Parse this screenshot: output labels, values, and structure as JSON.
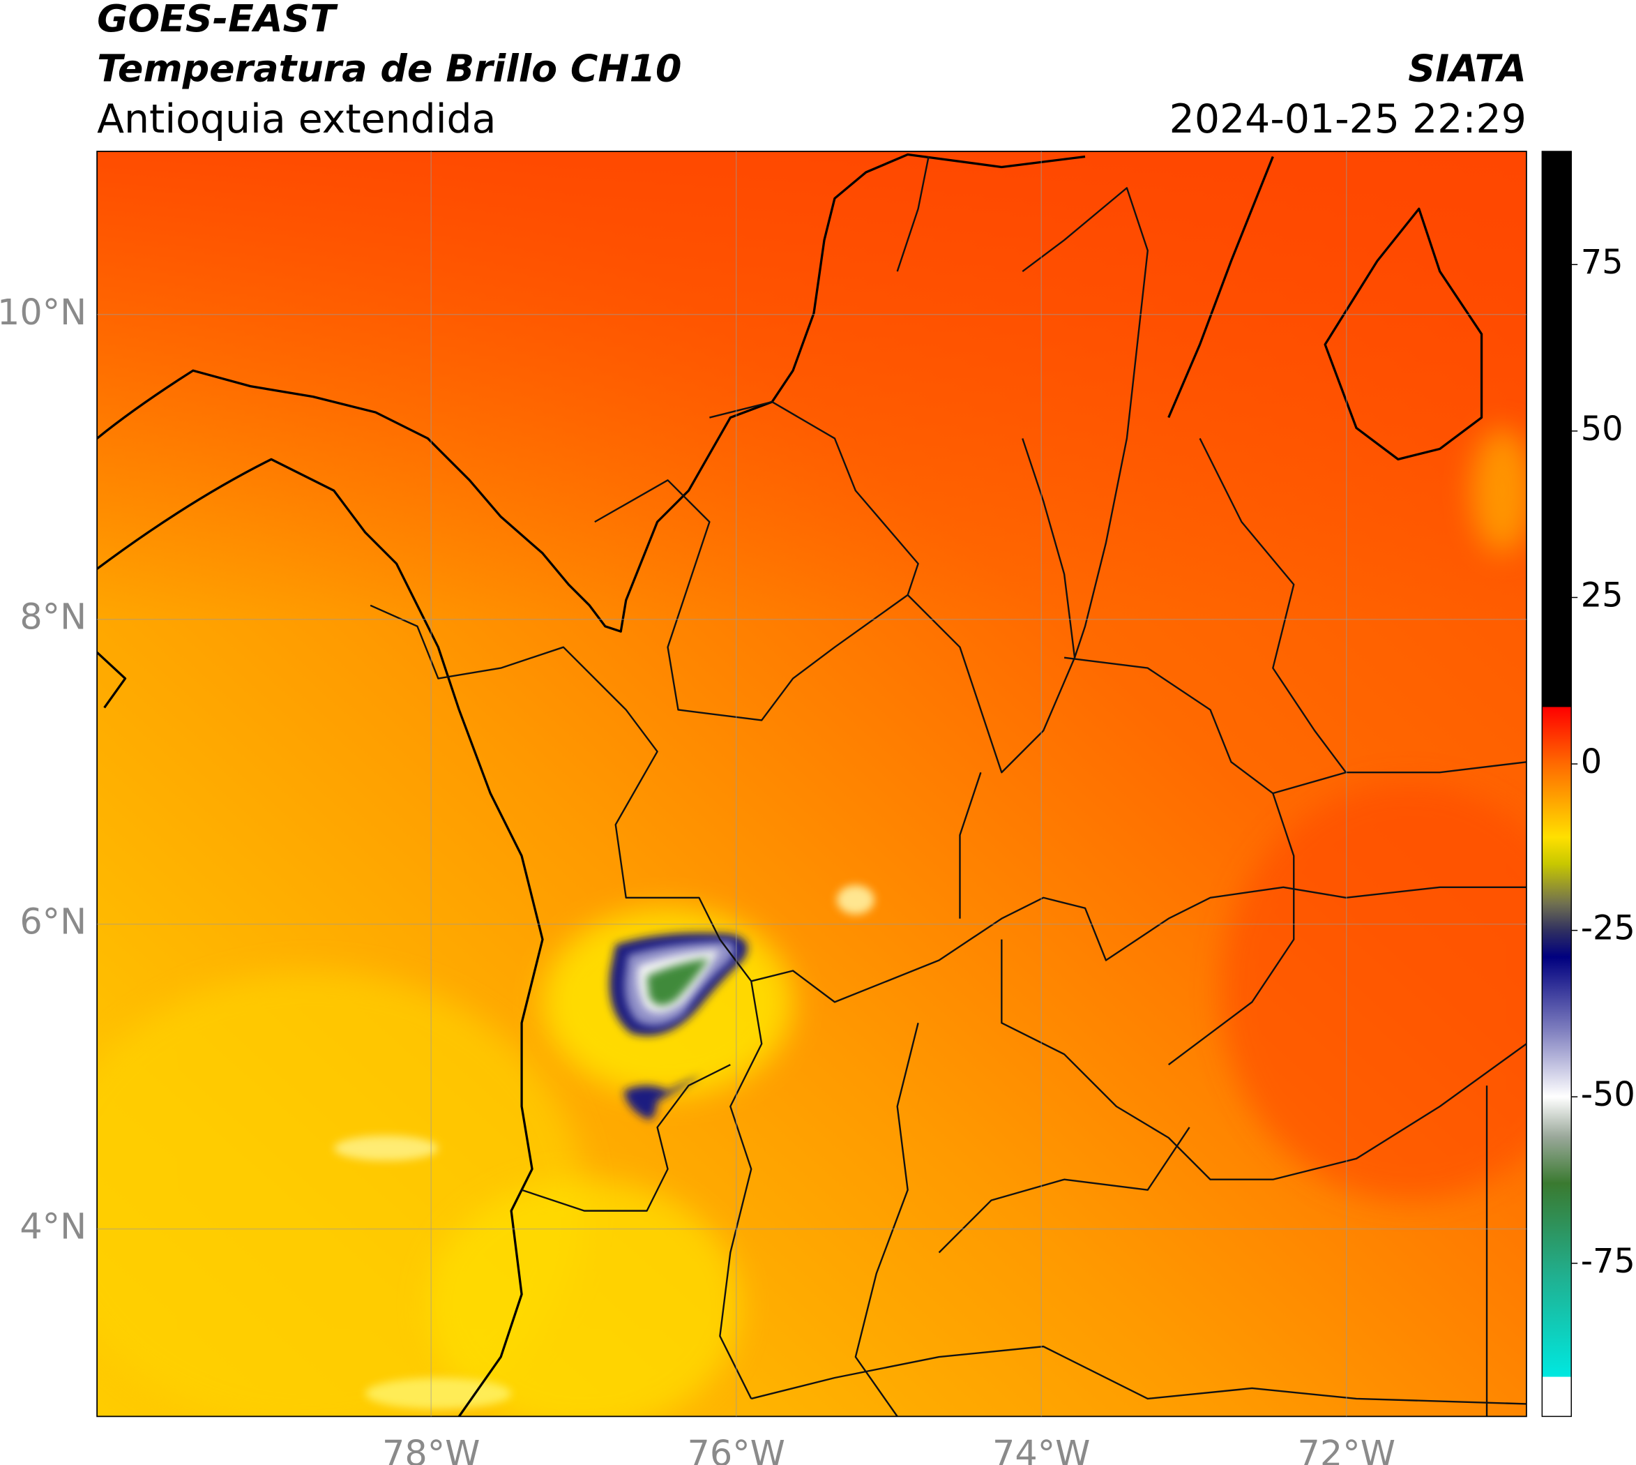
{
  "header": {
    "title": "GOES-EAST",
    "subtitle": "Temperatura de Brillo CH10",
    "region": "Antioquia extendida",
    "source": "SIATA",
    "datetime": "2024-01-25 22:29"
  },
  "map": {
    "lon_range": [
      -80.19,
      -70.82
    ],
    "lat_range": [
      2.77,
      11.07
    ],
    "grid": true,
    "xticks": [
      {
        "value": -78,
        "label": "78°W"
      },
      {
        "value": -76,
        "label": "76°W"
      },
      {
        "value": -74,
        "label": "74°W"
      },
      {
        "value": -72,
        "label": "72°W"
      }
    ],
    "yticks": [
      {
        "value": 10,
        "label": "10°N"
      },
      {
        "value": 8,
        "label": "8°N"
      },
      {
        "value": 6,
        "label": "6°N"
      },
      {
        "value": 4,
        "label": "4°N"
      }
    ]
  },
  "colorbar": {
    "range": [
      -98,
      92
    ],
    "ticks": [
      75,
      50,
      25,
      0,
      -25,
      -50,
      -75
    ],
    "stops": [
      {
        "value": 92,
        "color": "#000000"
      },
      {
        "value": 8.6,
        "color": "#000000"
      },
      {
        "value": 8.5,
        "color": "#ff0000"
      },
      {
        "value": 0,
        "color": "#ff6a00"
      },
      {
        "value": -11,
        "color": "#ffe000"
      },
      {
        "value": -15,
        "color": "#c8c800"
      },
      {
        "value": -21,
        "color": "#707050"
      },
      {
        "value": -25,
        "color": "#303060"
      },
      {
        "value": -29,
        "color": "#00007f"
      },
      {
        "value": -40,
        "color": "#7f7fbf"
      },
      {
        "value": -50,
        "color": "#ffffff"
      },
      {
        "value": -56,
        "color": "#9aa89a"
      },
      {
        "value": -63,
        "color": "#3a7a30"
      },
      {
        "value": -77,
        "color": "#20b090"
      },
      {
        "value": -92,
        "color": "#00e8e0"
      },
      {
        "value": -92.1,
        "color": "#ffffff"
      },
      {
        "value": -98,
        "color": "#ffffff"
      }
    ]
  }
}
